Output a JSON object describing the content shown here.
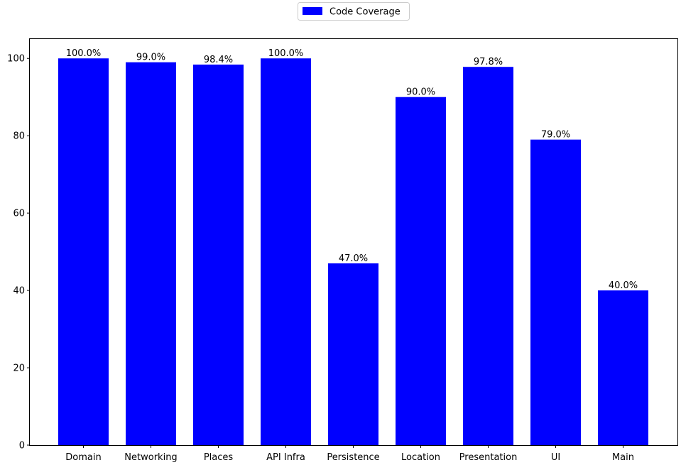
{
  "chart_data": {
    "type": "bar",
    "title": "",
    "xlabel": "",
    "ylabel": "",
    "categories": [
      "Domain",
      "Networking",
      "Places",
      "API Infra",
      "Persistence",
      "Location",
      "Presentation",
      "UI",
      "Main"
    ],
    "series": [
      {
        "name": "Code Coverage",
        "color": "#0000ff",
        "values": [
          100.0,
          99.0,
          98.4,
          100.0,
          47.0,
          90.0,
          97.8,
          79.0,
          40.0
        ]
      }
    ],
    "data_labels": [
      "100.0%",
      "99.0%",
      "98.4%",
      "100.0%",
      "47.0%",
      "90.0%",
      "97.8%",
      "79.0%",
      "40.0%"
    ],
    "ylim": [
      0,
      105
    ],
    "yticks": [
      0,
      20,
      40,
      60,
      80,
      100
    ],
    "grid": false,
    "legend": {
      "position": "top-center",
      "entries": [
        "Code Coverage"
      ]
    }
  }
}
